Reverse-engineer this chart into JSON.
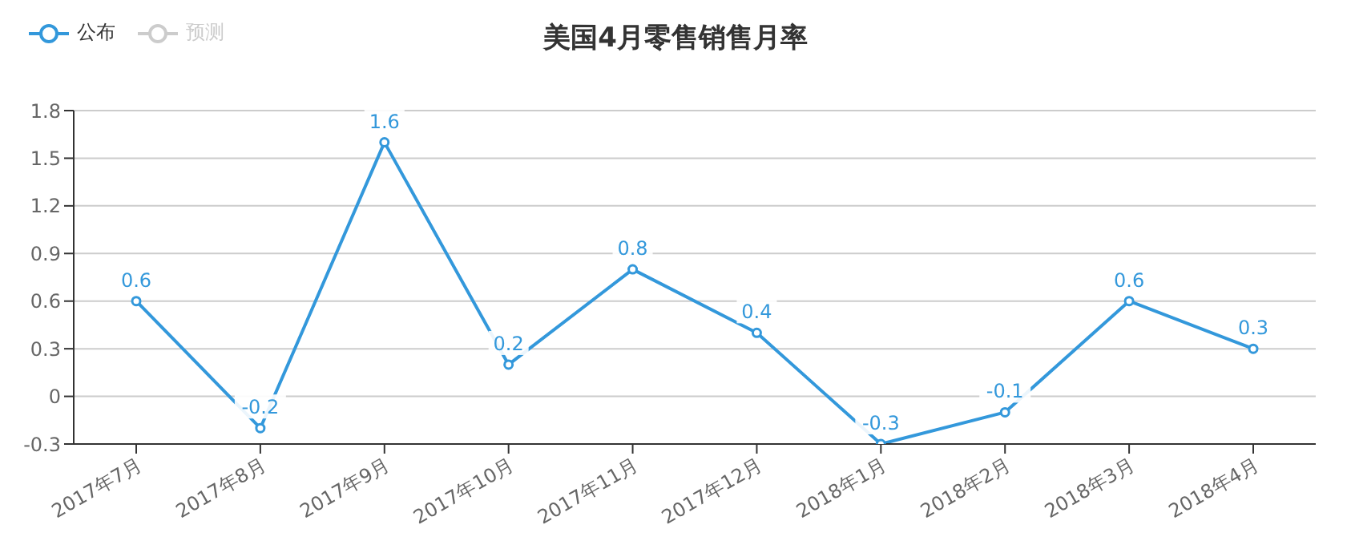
{
  "chart_data": {
    "type": "line",
    "title": "美国4月零售销售月率",
    "categories": [
      "2017年7月",
      "2017年8月",
      "2017年9月",
      "2017年10月",
      "2017年11月",
      "2017年12月",
      "2018年1月",
      "2018年2月",
      "2018年3月",
      "2018年4月"
    ],
    "series": [
      {
        "name": "公布",
        "color": "#3398db",
        "values": [
          0.6,
          -0.2,
          1.6,
          0.2,
          0.8,
          0.4,
          -0.3,
          -0.1,
          0.6,
          0.3
        ]
      },
      {
        "name": "预测",
        "color": "#cccccc",
        "values": [
          null,
          null,
          null,
          null,
          null,
          null,
          null,
          null,
          null,
          null
        ]
      }
    ],
    "ylim": [
      -0.3,
      1.8
    ],
    "yticks": [
      -0.3,
      0,
      0.3,
      0.6,
      0.9,
      1.2,
      1.5,
      1.8
    ],
    "grid": "y",
    "legend": "top left",
    "marker": "circle",
    "line_style": "solid",
    "data_labels": true
  }
}
